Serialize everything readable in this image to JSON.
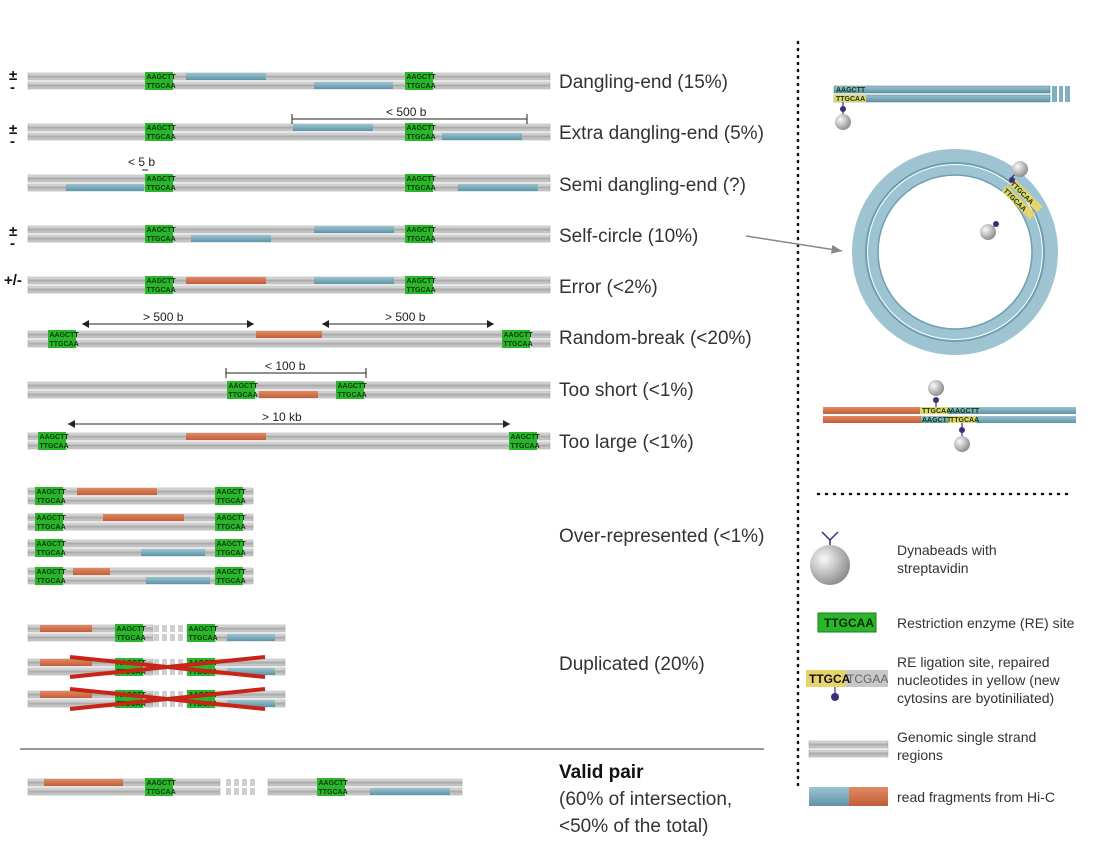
{
  "strand_signs": {
    "plus_minus": "±",
    "dash": "-",
    "both": "+/-"
  },
  "re_site": {
    "top": "AAGCTT",
    "bottom": "TTGCAA"
  },
  "categories": [
    {
      "label": "Dangling-end (15%)"
    },
    {
      "label": "Extra dangling-end (5%)"
    },
    {
      "label": "Semi dangling-end (?)"
    },
    {
      "label": "Self-circle (10%)"
    },
    {
      "label": "Error (<2%)"
    },
    {
      "label": "Random-break (<20%)"
    },
    {
      "label": "Too short (<1%)"
    },
    {
      "label": "Too large (<1%)"
    },
    {
      "label": "Over-represented (<1%)"
    },
    {
      "label": "Duplicated (20%)"
    }
  ],
  "distances": {
    "extra_dangling": "< 500 b",
    "semi_dangling": "< 5 b",
    "random_break_left": "> 500 b",
    "random_break_right": "> 500 b",
    "too_short": "< 100 b",
    "too_large": "> 10 kb"
  },
  "valid_pair": {
    "title": "Valid pair",
    "line1": "(60% of intersection,",
    "line2": "<50% of the total)"
  },
  "right_panel": {
    "ligation_top": "AAGCTT",
    "ligation_yellow": "TTGCAA",
    "ligation_grey": "AAGCTT",
    "ligation_yellow2": "TTGCAA"
  },
  "legend": {
    "dynabeads_line1": "Dynabeads with",
    "dynabeads_line2": " streptavidin",
    "re_site_box": "TTGCAA",
    "re_site": "Restriction enzyme (RE) site",
    "ligation_box_yellow": "TTGCA",
    "ligation_box_grey": "TCGAA",
    "ligation_line1": "RE ligation site, repaired",
    "ligation_line2": "nucleotides in yellow (new",
    "ligation_line3": "cytosins are byotiniliated)",
    "genomic_line1": "Genomic single strand",
    "genomic_line2": "regions",
    "reads": "read fragments from Hi-C"
  },
  "colors": {
    "strand": "#b4b4b4",
    "re_green": "#2bb52b",
    "read_blue": "#6fa4b6",
    "read_orange": "#d0704a",
    "yellow": "#e6d36e",
    "cross_red": "#c82418",
    "biotin": "#3d2d7a"
  }
}
